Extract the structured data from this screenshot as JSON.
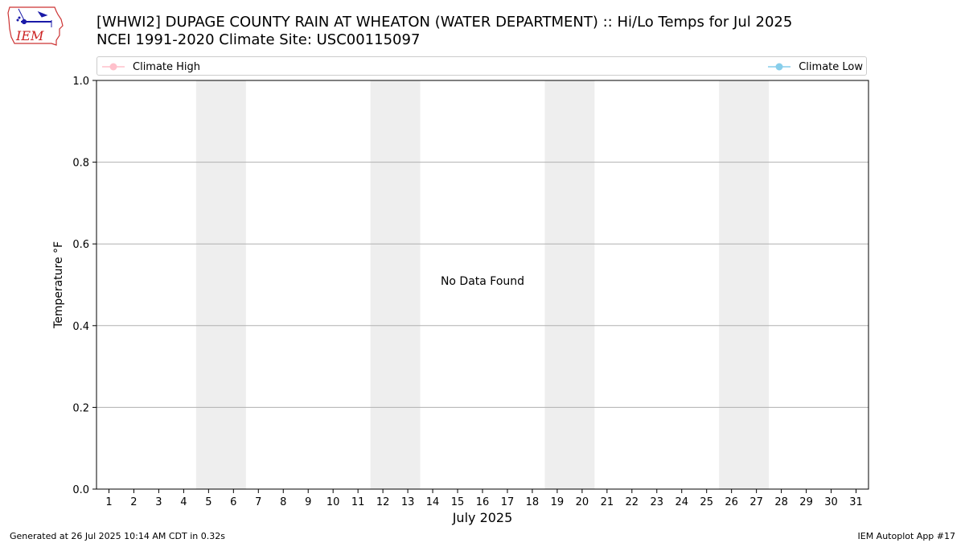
{
  "logo": {
    "text": "IEM"
  },
  "header": {
    "title_line1": "[WHWI2] DUPAGE COUNTY RAIN AT WHEATON (WATER DEPARTMENT) :: Hi/Lo Temps for Jul 2025",
    "title_line2": "NCEI 1991-2020 Climate Site: USC00115097"
  },
  "colors": {
    "climate_high": "#ffc0cb",
    "climate_low": "#87ceeb",
    "weekend_band": "#eeeeee",
    "grid": "#b0b0b0"
  },
  "chart_data": {
    "type": "line",
    "title": "[WHWI2] DUPAGE COUNTY RAIN AT WHEATON (WATER DEPARTMENT) :: Hi/Lo Temps for Jul 2025",
    "subtitle": "NCEI 1991-2020 Climate Site: USC00115097",
    "xlabel": "July 2025",
    "ylabel": "Temperature °F",
    "xlim": [
      0.5,
      31.5
    ],
    "ylim": [
      0,
      1
    ],
    "x_ticks": [
      1,
      2,
      3,
      4,
      5,
      6,
      7,
      8,
      9,
      10,
      11,
      12,
      13,
      14,
      15,
      16,
      17,
      18,
      19,
      20,
      21,
      22,
      23,
      24,
      25,
      26,
      27,
      28,
      29,
      30,
      31
    ],
    "y_ticks": [
      "0.0",
      "0.2",
      "0.4",
      "0.6",
      "0.8",
      "1.0"
    ],
    "y_tick_values": [
      0,
      0.2,
      0.4,
      0.6,
      0.8,
      1.0
    ],
    "weekend_bands": [
      [
        4.5,
        6.5
      ],
      [
        11.5,
        13.5
      ],
      [
        18.5,
        20.5
      ],
      [
        25.5,
        27.5
      ]
    ],
    "series": [
      {
        "name": "Climate High",
        "values": []
      },
      {
        "name": "Climate Low",
        "values": []
      }
    ],
    "annotation": "No Data Found",
    "grid": "horizontal",
    "legend_position": "top"
  },
  "footer": {
    "generated": "Generated at 26 Jul 2025 10:14 AM CDT in 0.32s",
    "app": "IEM Autoplot App #17"
  }
}
